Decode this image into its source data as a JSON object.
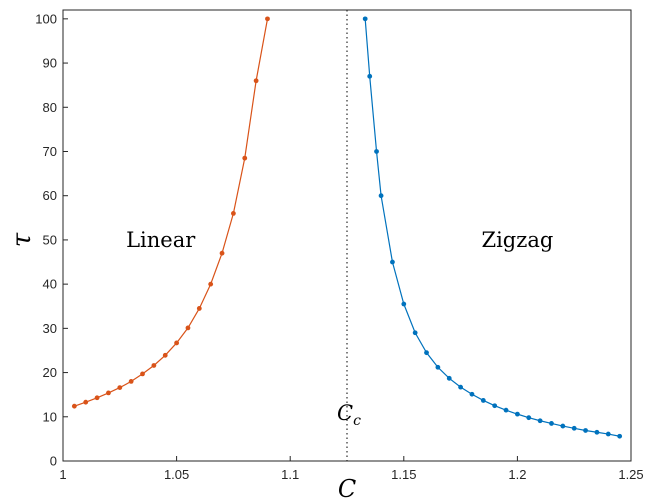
{
  "chart_data": {
    "type": "line",
    "xlabel": "C",
    "ylabel": "τ",
    "xlim": [
      1,
      1.25
    ],
    "ylim": [
      0,
      102
    ],
    "xticks": [
      "1",
      "1.05",
      "1.1",
      "1.15",
      "1.2",
      "1.25"
    ],
    "yticks": [
      "0",
      "10",
      "20",
      "30",
      "40",
      "50",
      "60",
      "70",
      "80",
      "90",
      "100"
    ],
    "grid": false,
    "critical_line": {
      "x": 1.125,
      "style": "dotted",
      "label_base": "C",
      "label_sub": "c"
    },
    "annotations": [
      {
        "text": "Linear",
        "x": 1.043,
        "y": 50
      },
      {
        "text": "Zigzag",
        "x": 1.2,
        "y": 50
      }
    ],
    "series": [
      {
        "color": "#D95319",
        "marker": "dot",
        "x": [
          1.005,
          1.01,
          1.015,
          1.02,
          1.025,
          1.03,
          1.035,
          1.04,
          1.045,
          1.05,
          1.055,
          1.06,
          1.065,
          1.07,
          1.075,
          1.08,
          1.085,
          1.09,
          1.095,
          1.1,
          1.105,
          1.108,
          1.11
        ],
        "y": [
          12.4,
          13.3,
          14.3,
          15.4,
          16.6,
          18.0,
          19.7,
          21.6,
          23.9,
          26.7,
          30.1,
          34.5,
          40.0,
          47.0,
          56.0,
          68.5,
          86.0,
          100.0,
          null,
          null,
          null,
          null,
          null
        ]
      },
      {
        "color": "#0072BD",
        "marker": "dot",
        "x": [
          1.133,
          1.135,
          1.138,
          1.14,
          1.145,
          1.15,
          1.155,
          1.16,
          1.165,
          1.17,
          1.175,
          1.18,
          1.185,
          1.19,
          1.195,
          1.2,
          1.205,
          1.21,
          1.215,
          1.22,
          1.225,
          1.23,
          1.235,
          1.24,
          1.245
        ],
        "y": [
          100.0,
          87.0,
          70.0,
          60.0,
          45.0,
          35.5,
          29.0,
          24.5,
          21.2,
          18.7,
          16.7,
          15.1,
          13.7,
          12.5,
          11.5,
          10.6,
          9.8,
          9.1,
          8.5,
          7.9,
          7.4,
          6.9,
          6.5,
          6.1,
          5.6
        ]
      }
    ]
  }
}
